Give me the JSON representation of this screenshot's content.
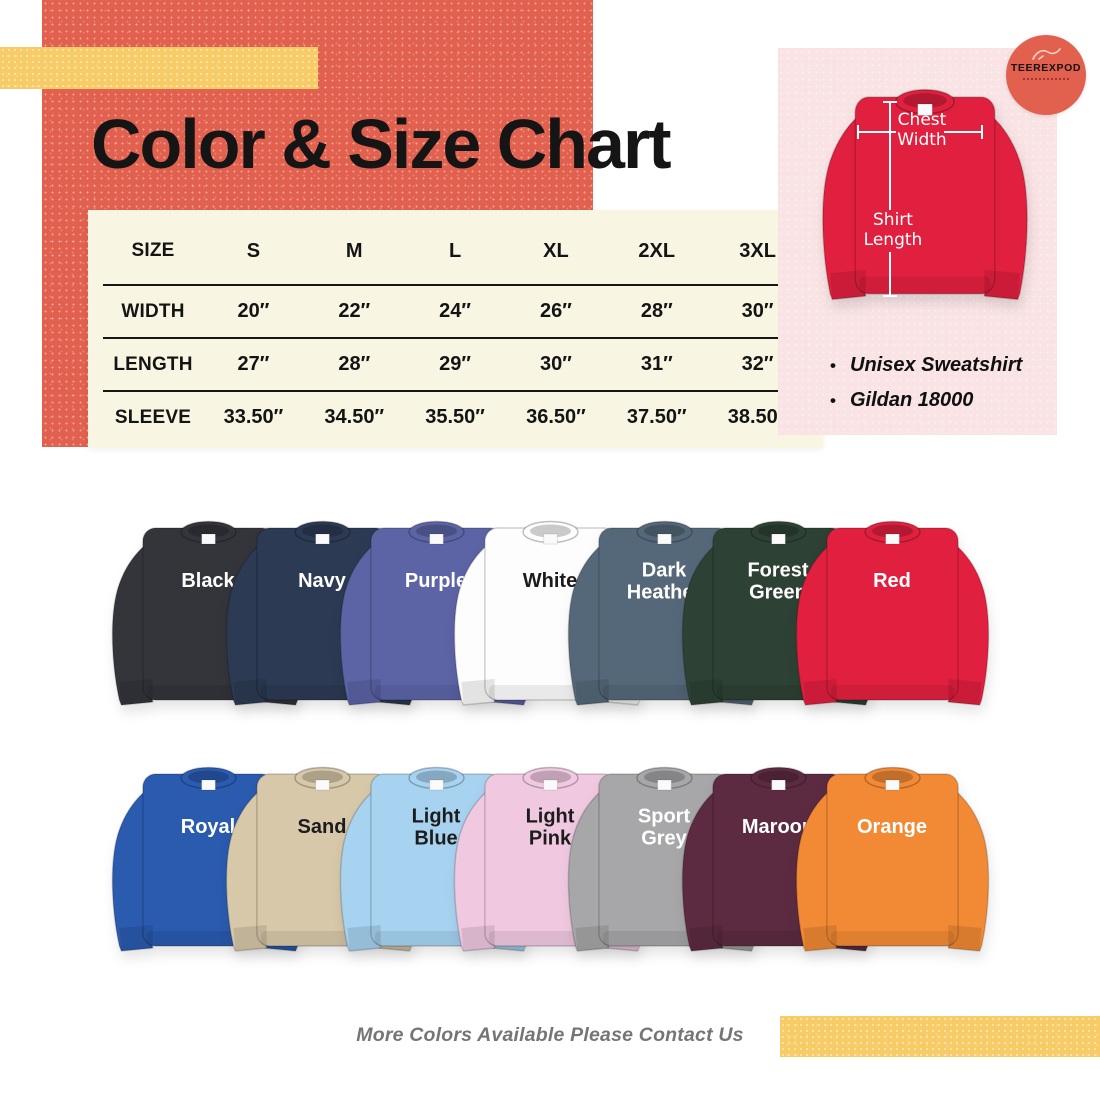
{
  "page": {
    "title": "Color & Size Chart",
    "footer_note": "More Colors Available Please Contact Us"
  },
  "logo": {
    "brand": "TEEREXPOD"
  },
  "size_table": {
    "columns": [
      "SIZE",
      "S",
      "M",
      "L",
      "XL",
      "2XL",
      "3XL"
    ],
    "rows": [
      {
        "label": "WIDTH",
        "values": [
          "20″",
          "22″",
          "24″",
          "26″",
          "28″",
          "30″"
        ]
      },
      {
        "label": "LENGTH",
        "values": [
          "27″",
          "28″",
          "29″",
          "30″",
          "31″",
          "32″"
        ]
      },
      {
        "label": "SLEEVE",
        "values": [
          "33.50″",
          "34.50″",
          "35.50″",
          "36.50″",
          "37.50″",
          "38.50″"
        ]
      }
    ]
  },
  "measurement_diagram": {
    "chest_label": "Chest Width",
    "length_label": "Shirt Length",
    "shirt_color": "#E1203F"
  },
  "product_bullets": [
    "Unisex Sweatshirt",
    "Gildan 18000"
  ],
  "color_rows": [
    [
      {
        "name": "Black",
        "hex": "#34353B",
        "text": "#FFFFFF"
      },
      {
        "name": "Navy",
        "hex": "#2C3A53",
        "text": "#FFFFFF"
      },
      {
        "name": "Purple",
        "hex": "#5C64A6",
        "text": "#FFFFFF"
      },
      {
        "name": "White",
        "hex": "#FDFDFD",
        "text": "#1C1C1C"
      },
      {
        "name": "Dark Heather",
        "hex": "#556879",
        "text": "#FFFFFF"
      },
      {
        "name": "Forest Green",
        "hex": "#2D4234",
        "text": "#FFFFFF"
      },
      {
        "name": "Red",
        "hex": "#E1203F",
        "text": "#FFFFFF"
      }
    ],
    [
      {
        "name": "Royal",
        "hex": "#2A5BAF",
        "text": "#FFFFFF"
      },
      {
        "name": "Sand",
        "hex": "#D7C8A9",
        "text": "#1C1C1C"
      },
      {
        "name": "Light Blue",
        "hex": "#A7D3F1",
        "text": "#1C1C1C"
      },
      {
        "name": "Light Pink",
        "hex": "#F0C9E1",
        "text": "#1C1C1C"
      },
      {
        "name": "Sport Grey",
        "hex": "#A7A7A9",
        "text": "#FFFFFF"
      },
      {
        "name": "Maroon",
        "hex": "#5D2B41",
        "text": "#FFFFFF"
      },
      {
        "name": "Orange",
        "hex": "#F28A35",
        "text": "#FFFFFF"
      }
    ]
  ],
  "accent_colors": {
    "coral": "#E1604E",
    "yellow": "#F7CB66",
    "panel_pink": "#F9E3E4",
    "card_cream": "#F8F6E3"
  }
}
